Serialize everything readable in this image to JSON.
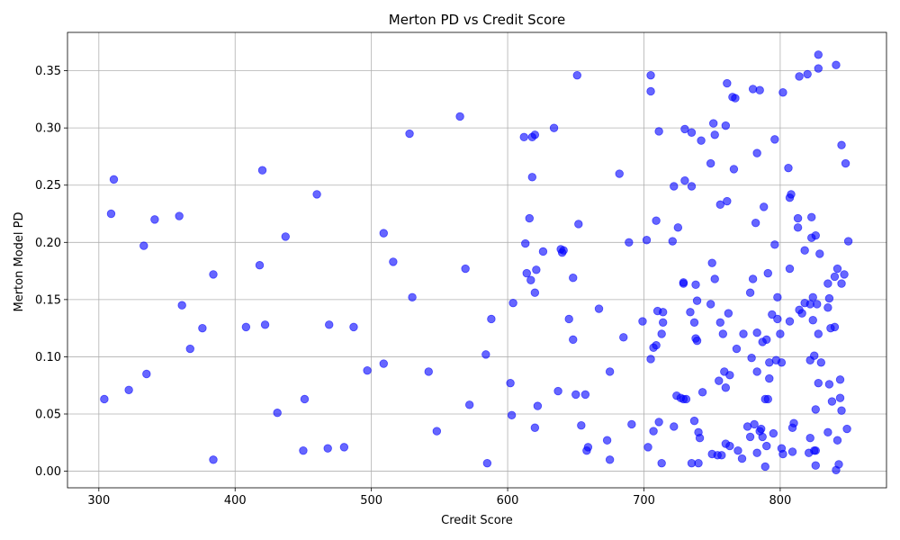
{
  "chart_data": {
    "type": "scatter",
    "title": "Merton PD vs Credit Score",
    "xlabel": "Credit Score",
    "ylabel": "Merton Model PD",
    "xlim": [
      277,
      878
    ],
    "ylim": [
      -0.0145,
      0.3835
    ],
    "xticks": [
      300,
      400,
      500,
      600,
      700,
      800
    ],
    "xtick_labels": [
      "300",
      "400",
      "500",
      "600",
      "700",
      "800"
    ],
    "yticks": [
      0.0,
      0.05,
      0.1,
      0.15,
      0.2,
      0.25,
      0.3,
      0.35
    ],
    "ytick_labels": [
      "0.00",
      "0.05",
      "0.10",
      "0.15",
      "0.20",
      "0.25",
      "0.30",
      "0.35"
    ],
    "grid": true,
    "legend": "none",
    "marker_color": "#0000ff",
    "marker_alpha": 0.6,
    "points": [
      [
        304,
        0.063
      ],
      [
        309,
        0.225
      ],
      [
        311,
        0.255
      ],
      [
        322,
        0.071
      ],
      [
        333,
        0.197
      ],
      [
        335,
        0.085
      ],
      [
        341,
        0.22
      ],
      [
        359,
        0.223
      ],
      [
        361,
        0.145
      ],
      [
        367,
        0.107
      ],
      [
        376,
        0.125
      ],
      [
        384,
        0.172
      ],
      [
        384,
        0.01
      ],
      [
        408,
        0.126
      ],
      [
        418,
        0.18
      ],
      [
        420,
        0.263
      ],
      [
        422,
        0.128
      ],
      [
        431,
        0.051
      ],
      [
        437,
        0.205
      ],
      [
        450,
        0.018
      ],
      [
        451,
        0.063
      ],
      [
        460,
        0.242
      ],
      [
        468,
        0.02
      ],
      [
        469,
        0.128
      ],
      [
        480,
        0.021
      ],
      [
        487,
        0.126
      ],
      [
        497,
        0.088
      ],
      [
        509,
        0.208
      ],
      [
        509,
        0.094
      ],
      [
        516,
        0.183
      ],
      [
        528,
        0.295
      ],
      [
        530,
        0.152
      ],
      [
        542,
        0.087
      ],
      [
        548,
        0.035
      ],
      [
        565,
        0.31
      ],
      [
        569,
        0.177
      ],
      [
        572,
        0.058
      ],
      [
        584,
        0.102
      ],
      [
        585,
        0.007
      ],
      [
        588,
        0.133
      ],
      [
        602,
        0.077
      ],
      [
        603,
        0.049
      ],
      [
        604,
        0.147
      ],
      [
        612,
        0.292
      ],
      [
        613,
        0.199
      ],
      [
        614,
        0.173
      ],
      [
        616,
        0.221
      ],
      [
        617,
        0.167
      ],
      [
        618,
        0.257
      ],
      [
        618,
        0.292
      ],
      [
        620,
        0.038
      ],
      [
        620,
        0.294
      ],
      [
        620,
        0.156
      ],
      [
        621,
        0.176
      ],
      [
        622,
        0.057
      ],
      [
        626,
        0.192
      ],
      [
        634,
        0.3
      ],
      [
        637,
        0.07
      ],
      [
        639,
        0.194
      ],
      [
        640,
        0.191
      ],
      [
        641,
        0.193
      ],
      [
        645,
        0.133
      ],
      [
        648,
        0.169
      ],
      [
        648,
        0.115
      ],
      [
        650,
        0.067
      ],
      [
        651,
        0.346
      ],
      [
        652,
        0.216
      ],
      [
        654,
        0.04
      ],
      [
        657,
        0.067
      ],
      [
        658,
        0.018
      ],
      [
        659,
        0.021
      ],
      [
        667,
        0.142
      ],
      [
        673,
        0.027
      ],
      [
        675,
        0.087
      ],
      [
        675,
        0.01
      ],
      [
        682,
        0.26
      ],
      [
        685,
        0.117
      ],
      [
        689,
        0.2
      ],
      [
        691,
        0.041
      ],
      [
        699,
        0.131
      ],
      [
        702,
        0.202
      ],
      [
        703,
        0.021
      ],
      [
        705,
        0.098
      ],
      [
        705,
        0.346
      ],
      [
        705,
        0.332
      ],
      [
        707,
        0.035
      ],
      [
        707,
        0.108
      ],
      [
        709,
        0.219
      ],
      [
        709,
        0.11
      ],
      [
        710,
        0.14
      ],
      [
        711,
        0.043
      ],
      [
        711,
        0.297
      ],
      [
        713,
        0.12
      ],
      [
        713,
        0.007
      ],
      [
        714,
        0.13
      ],
      [
        714,
        0.139
      ],
      [
        721,
        0.201
      ],
      [
        722,
        0.039
      ],
      [
        722,
        0.249
      ],
      [
        724,
        0.066
      ],
      [
        725,
        0.213
      ],
      [
        727,
        0.064
      ],
      [
        729,
        0.063
      ],
      [
        729,
        0.164
      ],
      [
        729,
        0.165
      ],
      [
        730,
        0.299
      ],
      [
        730,
        0.254
      ],
      [
        731,
        0.063
      ],
      [
        734,
        0.139
      ],
      [
        735,
        0.296
      ],
      [
        735,
        0.249
      ],
      [
        735,
        0.007
      ],
      [
        737,
        0.13
      ],
      [
        737,
        0.044
      ],
      [
        738,
        0.163
      ],
      [
        738,
        0.116
      ],
      [
        739,
        0.149
      ],
      [
        739,
        0.114
      ],
      [
        740,
        0.007
      ],
      [
        740,
        0.034
      ],
      [
        741,
        0.029
      ],
      [
        742,
        0.289
      ],
      [
        743,
        0.069
      ],
      [
        749,
        0.146
      ],
      [
        749,
        0.269
      ],
      [
        750,
        0.182
      ],
      [
        750,
        0.015
      ],
      [
        751,
        0.304
      ],
      [
        752,
        0.294
      ],
      [
        752,
        0.168
      ],
      [
        754,
        0.014
      ],
      [
        755,
        0.079
      ],
      [
        756,
        0.13
      ],
      [
        756,
        0.233
      ],
      [
        757,
        0.014
      ],
      [
        758,
        0.12
      ],
      [
        759,
        0.087
      ],
      [
        760,
        0.302
      ],
      [
        760,
        0.024
      ],
      [
        760,
        0.073
      ],
      [
        761,
        0.236
      ],
      [
        761,
        0.339
      ],
      [
        762,
        0.138
      ],
      [
        763,
        0.084
      ],
      [
        763,
        0.022
      ],
      [
        765,
        0.327
      ],
      [
        766,
        0.264
      ],
      [
        767,
        0.326
      ],
      [
        768,
        0.107
      ],
      [
        769,
        0.018
      ],
      [
        772,
        0.011
      ],
      [
        773,
        0.12
      ],
      [
        776,
        0.039
      ],
      [
        778,
        0.156
      ],
      [
        778,
        0.03
      ],
      [
        779,
        0.099
      ],
      [
        780,
        0.168
      ],
      [
        780,
        0.334
      ],
      [
        781,
        0.041
      ],
      [
        782,
        0.217
      ],
      [
        783,
        0.278
      ],
      [
        783,
        0.121
      ],
      [
        783,
        0.087
      ],
      [
        783,
        0.016
      ],
      [
        785,
        0.035
      ],
      [
        785,
        0.333
      ],
      [
        786,
        0.037
      ],
      [
        787,
        0.113
      ],
      [
        787,
        0.03
      ],
      [
        788,
        0.231
      ],
      [
        789,
        0.004
      ],
      [
        789,
        0.063
      ],
      [
        790,
        0.022
      ],
      [
        790,
        0.115
      ],
      [
        791,
        0.063
      ],
      [
        791,
        0.173
      ],
      [
        792,
        0.095
      ],
      [
        792,
        0.081
      ],
      [
        794,
        0.137
      ],
      [
        795,
        0.033
      ],
      [
        796,
        0.29
      ],
      [
        796,
        0.198
      ],
      [
        797,
        0.097
      ],
      [
        798,
        0.152
      ],
      [
        798,
        0.133
      ],
      [
        800,
        0.12
      ],
      [
        801,
        0.02
      ],
      [
        801,
        0.095
      ],
      [
        802,
        0.331
      ],
      [
        802,
        0.015
      ],
      [
        806,
        0.265
      ],
      [
        807,
        0.177
      ],
      [
        807,
        0.239
      ],
      [
        807,
        0.131
      ],
      [
        808,
        0.242
      ],
      [
        809,
        0.017
      ],
      [
        809,
        0.038
      ],
      [
        810,
        0.042
      ],
      [
        813,
        0.221
      ],
      [
        813,
        0.213
      ],
      [
        814,
        0.345
      ],
      [
        814,
        0.141
      ],
      [
        816,
        0.138
      ],
      [
        818,
        0.193
      ],
      [
        818,
        0.147
      ],
      [
        820,
        0.347
      ],
      [
        821,
        0.016
      ],
      [
        822,
        0.029
      ],
      [
        822,
        0.097
      ],
      [
        822,
        0.146
      ],
      [
        823,
        0.204
      ],
      [
        823,
        0.222
      ],
      [
        824,
        0.132
      ],
      [
        824,
        0.152
      ],
      [
        825,
        0.018
      ],
      [
        825,
        0.101
      ],
      [
        826,
        0.005
      ],
      [
        826,
        0.018
      ],
      [
        826,
        0.206
      ],
      [
        826,
        0.054
      ],
      [
        827,
        0.146
      ],
      [
        828,
        0.352
      ],
      [
        828,
        0.364
      ],
      [
        828,
        0.12
      ],
      [
        828,
        0.077
      ],
      [
        829,
        0.19
      ],
      [
        830,
        0.095
      ],
      [
        835,
        0.143
      ],
      [
        835,
        0.164
      ],
      [
        835,
        0.034
      ],
      [
        836,
        0.076
      ],
      [
        836,
        0.151
      ],
      [
        837,
        0.125
      ],
      [
        838,
        0.061
      ],
      [
        840,
        0.17
      ],
      [
        840,
        0.126
      ],
      [
        841,
        0.001
      ],
      [
        841,
        0.355
      ],
      [
        842,
        0.027
      ],
      [
        842,
        0.177
      ],
      [
        843,
        0.006
      ],
      [
        844,
        0.064
      ],
      [
        844,
        0.08
      ],
      [
        845,
        0.285
      ],
      [
        845,
        0.164
      ],
      [
        845,
        0.053
      ],
      [
        847,
        0.172
      ],
      [
        848,
        0.269
      ],
      [
        849,
        0.037
      ],
      [
        850,
        0.201
      ]
    ]
  }
}
